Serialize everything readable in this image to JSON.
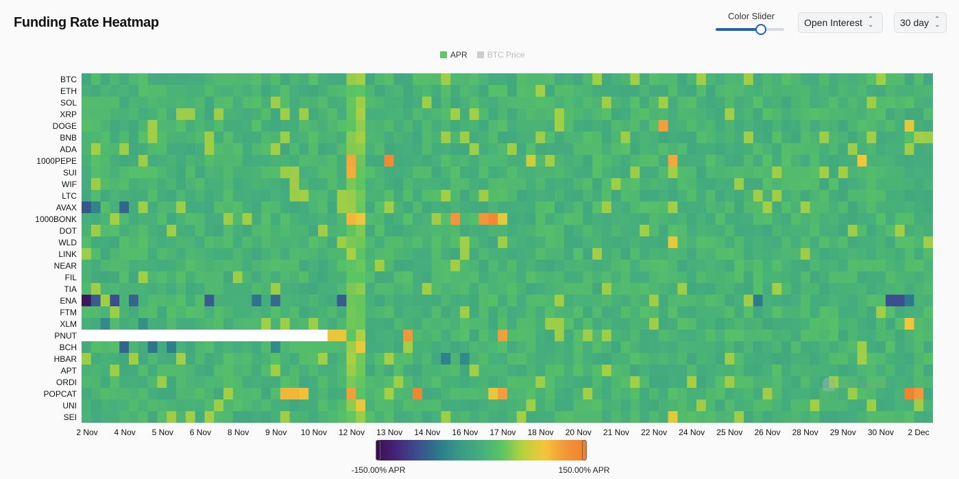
{
  "header": {
    "title": "Funding Rate Heatmap",
    "slider_label": "Color Slider",
    "slider_value": 0.65,
    "metric_select": "Open Interest",
    "range_select": "30 day"
  },
  "colors": {
    "accent": "#1565c0",
    "apr_legend": "#5ec962",
    "btc_legend": "#cccccc",
    "scale": [
      "#3b0f4f",
      "#45267a",
      "#3b4f8c",
      "#2c7a8c",
      "#3a9b85",
      "#45ae7c",
      "#5cc562",
      "#b8d23c",
      "#f4c53a",
      "#f2963a",
      "#ee7f2d"
    ]
  },
  "chart_data": {
    "type": "heatmap",
    "title": "Funding Rate Heatmap",
    "legend": [
      {
        "name": "APR",
        "active": true
      },
      {
        "name": "BTC Price",
        "active": false
      }
    ],
    "legend_placement": "top-center",
    "rows": [
      "BTC",
      "ETH",
      "SOL",
      "XRP",
      "DOGE",
      "BNB",
      "ADA",
      "1000PEPE",
      "SUI",
      "WIF",
      "LTC",
      "AVAX",
      "1000BONK",
      "DOT",
      "WLD",
      "LINK",
      "NEAR",
      "FIL",
      "TIA",
      "ENA",
      "FTM",
      "XLM",
      "PNUT",
      "BCH",
      "HBAR",
      "APT",
      "ORDI",
      "POPCAT",
      "UNI",
      "SEI"
    ],
    "x_tick_labels": [
      "2 Nov",
      "4 Nov",
      "5 Nov",
      "6 Nov",
      "8 Nov",
      "9 Nov",
      "10 Nov",
      "12 Nov",
      "13 Nov",
      "14 Nov",
      "16 Nov",
      "17 Nov",
      "18 Nov",
      "20 Nov",
      "21 Nov",
      "22 Nov",
      "24 Nov",
      "25 Nov",
      "26 Nov",
      "28 Nov",
      "29 Nov",
      "30 Nov",
      "2 Dec"
    ],
    "x_range": [
      "2 Nov",
      "2 Dec"
    ],
    "columns": 90,
    "value_unit": "APR %",
    "color_range": [
      -150,
      150
    ],
    "color_min_label": "-150.00% APR",
    "color_max_label": "150.00% APR",
    "baseline_value": 8,
    "column_offsets": [
      {
        "col": 28,
        "add": 35
      },
      {
        "col": 29,
        "add": 35
      }
    ],
    "hot_cells": [
      {
        "row": 7,
        "col": 28,
        "value": 110
      },
      {
        "row": 8,
        "col": 28,
        "value": 105
      },
      {
        "row": 7,
        "col": 32,
        "value": 135
      },
      {
        "row": 7,
        "col": 62,
        "value": 110
      },
      {
        "row": 4,
        "col": 61,
        "value": 115
      },
      {
        "row": 12,
        "col": 28,
        "value": 100
      },
      {
        "row": 12,
        "col": 39,
        "value": 120
      },
      {
        "row": 12,
        "col": 42,
        "value": 120
      },
      {
        "row": 12,
        "col": 43,
        "value": 135
      },
      {
        "row": 12,
        "col": 44,
        "value": 80
      },
      {
        "row": 22,
        "col": 34,
        "value": 120
      },
      {
        "row": 22,
        "col": 44,
        "value": 115
      },
      {
        "row": 22,
        "col": 26,
        "value": 85
      },
      {
        "row": 22,
        "col": 27,
        "value": 85
      },
      {
        "row": 27,
        "col": 21,
        "value": 100
      },
      {
        "row": 27,
        "col": 22,
        "value": 100
      },
      {
        "row": 27,
        "col": 23,
        "value": 95
      },
      {
        "row": 27,
        "col": 28,
        "value": 115
      },
      {
        "row": 27,
        "col": 35,
        "value": 140
      },
      {
        "row": 27,
        "col": 44,
        "value": 115
      },
      {
        "row": 27,
        "col": 43,
        "value": 85
      },
      {
        "row": 27,
        "col": 87,
        "value": 145
      },
      {
        "row": 27,
        "col": 88,
        "value": 120
      },
      {
        "row": 14,
        "col": 62,
        "value": 85
      },
      {
        "row": 29,
        "col": 62,
        "value": 80
      },
      {
        "row": 4,
        "col": 87,
        "value": 80
      },
      {
        "row": 21,
        "col": 87,
        "value": 90
      },
      {
        "row": 7,
        "col": 82,
        "value": 90
      },
      {
        "row": 7,
        "col": 47,
        "value": 70
      }
    ],
    "cold_cells": [
      {
        "row": 19,
        "col": 0,
        "value": -140
      },
      {
        "row": 19,
        "col": 1,
        "value": -80
      },
      {
        "row": 19,
        "col": 3,
        "value": -90
      },
      {
        "row": 19,
        "col": 5,
        "value": -75
      },
      {
        "row": 19,
        "col": 13,
        "value": -80
      },
      {
        "row": 19,
        "col": 18,
        "value": -65
      },
      {
        "row": 19,
        "col": 20,
        "value": -70
      },
      {
        "row": 19,
        "col": 27,
        "value": -80
      },
      {
        "row": 19,
        "col": 71,
        "value": -60
      },
      {
        "row": 19,
        "col": 85,
        "value": -90
      },
      {
        "row": 19,
        "col": 86,
        "value": -90
      },
      {
        "row": 19,
        "col": 87,
        "value": -60
      },
      {
        "row": 11,
        "col": 0,
        "value": -85
      },
      {
        "row": 11,
        "col": 1,
        "value": -50
      },
      {
        "row": 11,
        "col": 4,
        "value": -75
      },
      {
        "row": 23,
        "col": 4,
        "value": -75
      },
      {
        "row": 23,
        "col": 7,
        "value": -65
      },
      {
        "row": 23,
        "col": 9,
        "value": -55
      },
      {
        "row": 23,
        "col": 20,
        "value": -45
      },
      {
        "row": 24,
        "col": 38,
        "value": -55
      },
      {
        "row": 24,
        "col": 40,
        "value": -45
      },
      {
        "row": 21,
        "col": 2,
        "value": -45
      },
      {
        "row": 21,
        "col": 6,
        "value": -40
      }
    ],
    "missing_cells": [
      {
        "row": 22,
        "from_col": 0,
        "to_col": 25
      }
    ]
  }
}
